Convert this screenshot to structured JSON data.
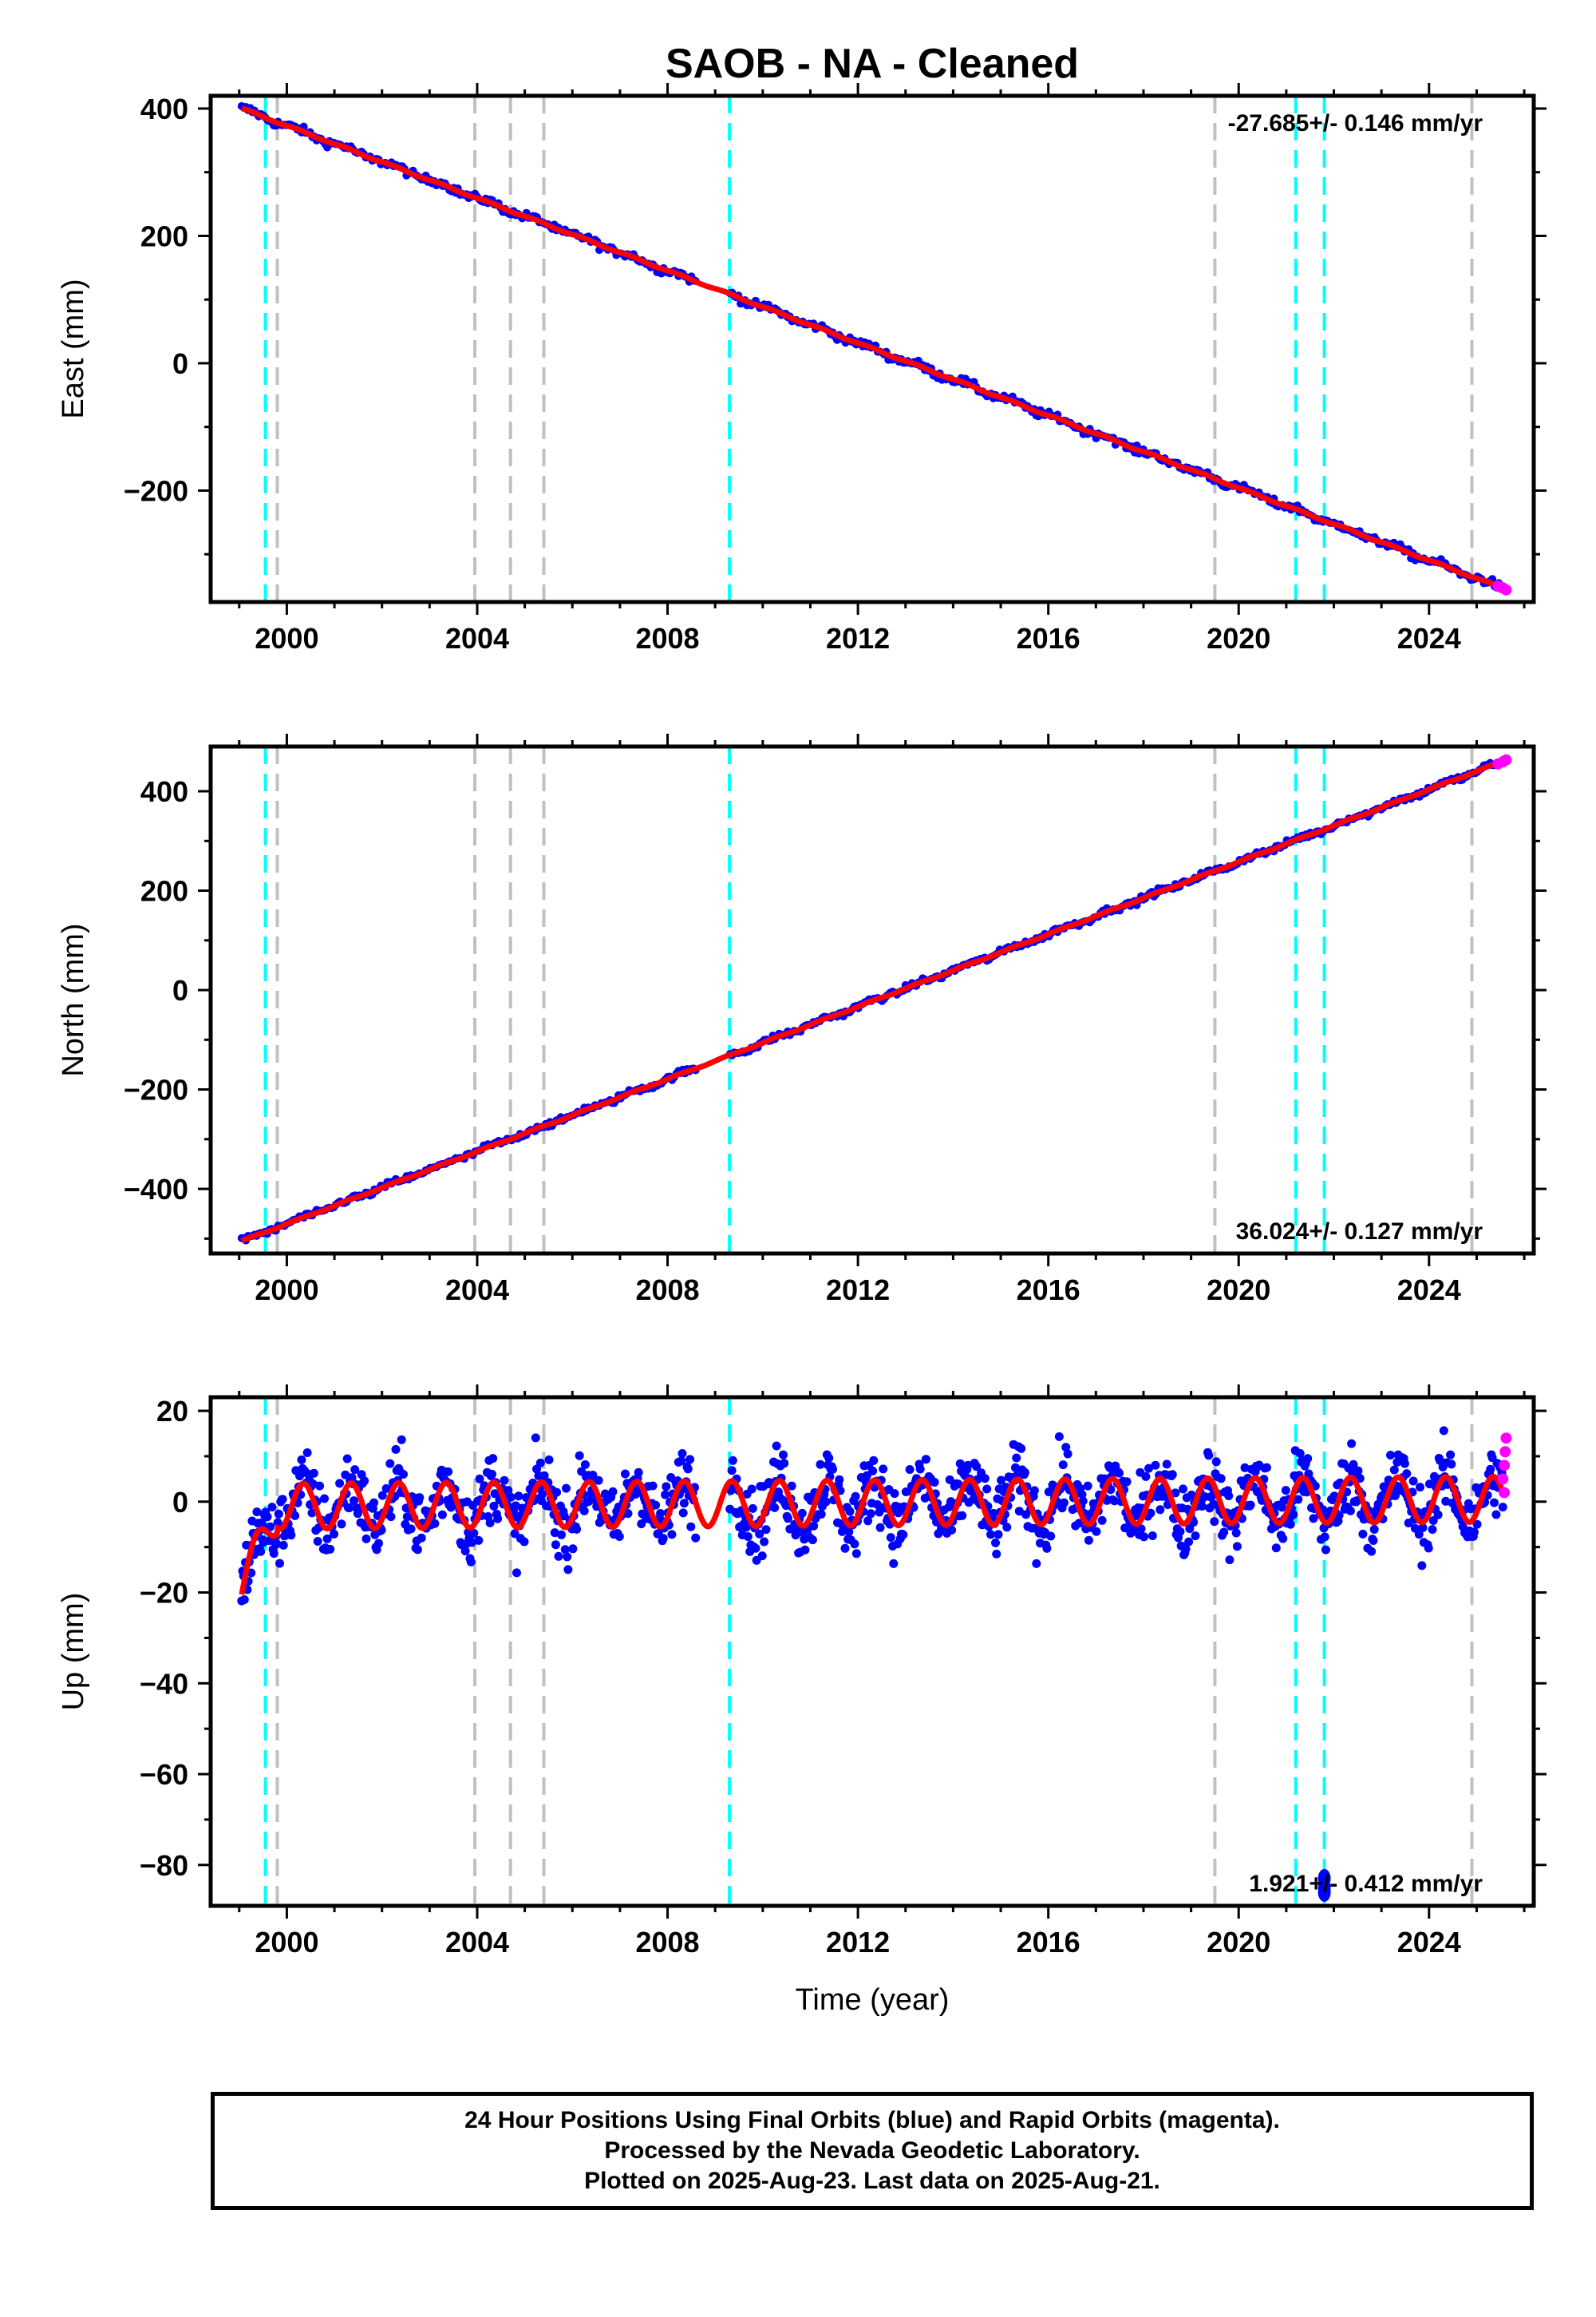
{
  "title": "SAOB  - NA - Cleaned",
  "x_axis_label": "Time (year)",
  "caption": [
    "24 Hour Positions Using Final Orbits (blue) and Rapid Orbits (magenta).",
    "Processed by the Nevada Geodetic Laboratory.",
    "Plotted on 2025-Aug-23. Last data on 2025-Aug-21."
  ],
  "colors": {
    "final_orbits": "#0000ff",
    "rapid_orbits": "#ff00ff",
    "model": "#ff0000",
    "equipment_change": "#00ffff",
    "other_event": "#c0c0c0"
  },
  "chart_data": [
    {
      "type": "scatter",
      "ylabel": "East (mm)",
      "xlim": [
        1998.4,
        2026.2
      ],
      "ylim": [
        -375,
        420
      ],
      "xticks": [
        2000,
        2004,
        2008,
        2012,
        2016,
        2020,
        2024
      ],
      "yticks": [
        -200,
        0,
        200,
        400
      ],
      "velocity_text": "-27.685+/- 0.146 mm/yr",
      "velocity_position": "top-right",
      "trend": {
        "start": [
          1999.05,
          400
        ],
        "end": [
          2025.6,
          -355
        ],
        "gap": [
          2008.6,
          2009.3
        ]
      },
      "rapid_points": [
        [
          2025.45,
          -350
        ],
        [
          2025.55,
          -353
        ],
        [
          2025.62,
          -356
        ]
      ],
      "event_lines": [
        {
          "x": 1999.55,
          "kind": "equipment_change"
        },
        {
          "x": 1999.8,
          "kind": "other_event"
        },
        {
          "x": 2003.95,
          "kind": "other_event"
        },
        {
          "x": 2004.7,
          "kind": "other_event"
        },
        {
          "x": 2005.4,
          "kind": "other_event"
        },
        {
          "x": 2009.3,
          "kind": "equipment_change"
        },
        {
          "x": 2019.5,
          "kind": "other_event"
        },
        {
          "x": 2021.2,
          "kind": "equipment_change"
        },
        {
          "x": 2021.8,
          "kind": "equipment_change"
        },
        {
          "x": 2024.9,
          "kind": "other_event"
        }
      ]
    },
    {
      "type": "scatter",
      "ylabel": "North (mm)",
      "xlim": [
        1998.4,
        2026.2
      ],
      "ylim": [
        -530,
        490
      ],
      "xticks": [
        2000,
        2004,
        2008,
        2012,
        2016,
        2020,
        2024
      ],
      "yticks": [
        -400,
        -200,
        0,
        200,
        400
      ],
      "velocity_text": "36.024+/- 0.127 mm/yr",
      "velocity_position": "bottom-right",
      "trend": {
        "start": [
          1999.05,
          -505
        ],
        "end": [
          2025.6,
          462
        ],
        "gap": [
          2008.6,
          2009.3
        ]
      },
      "rapid_points": [
        [
          2025.45,
          455
        ],
        [
          2025.55,
          459
        ],
        [
          2025.62,
          463
        ]
      ],
      "event_lines": [
        {
          "x": 1999.55,
          "kind": "equipment_change"
        },
        {
          "x": 1999.8,
          "kind": "other_event"
        },
        {
          "x": 2003.95,
          "kind": "other_event"
        },
        {
          "x": 2004.7,
          "kind": "other_event"
        },
        {
          "x": 2005.4,
          "kind": "other_event"
        },
        {
          "x": 2009.3,
          "kind": "equipment_change"
        },
        {
          "x": 2019.5,
          "kind": "other_event"
        },
        {
          "x": 2021.2,
          "kind": "equipment_change"
        },
        {
          "x": 2021.8,
          "kind": "equipment_change"
        },
        {
          "x": 2024.9,
          "kind": "other_event"
        }
      ]
    },
    {
      "type": "scatter",
      "ylabel": "Up (mm)",
      "xlim": [
        1998.4,
        2026.2
      ],
      "ylim": [
        -89,
        23
      ],
      "xticks": [
        2000,
        2004,
        2008,
        2012,
        2016,
        2020,
        2024
      ],
      "yticks": [
        -80,
        -60,
        -40,
        -20,
        0,
        20
      ],
      "velocity_text": "1.921+/- 0.412 mm/yr",
      "velocity_position": "bottom-right",
      "seasonal_amplitude": 5,
      "scatter_spread": 7,
      "rapid_points": [
        [
          2025.55,
          5
        ],
        [
          2025.58,
          8
        ],
        [
          2025.6,
          11
        ],
        [
          2025.62,
          14
        ],
        [
          2025.58,
          2
        ]
      ],
      "outliers": [
        [
          2021.8,
          -83
        ],
        [
          2021.8,
          -85
        ],
        [
          2021.8,
          -86
        ]
      ],
      "event_lines": [
        {
          "x": 1999.55,
          "kind": "equipment_change"
        },
        {
          "x": 1999.8,
          "kind": "other_event"
        },
        {
          "x": 2003.95,
          "kind": "other_event"
        },
        {
          "x": 2004.7,
          "kind": "other_event"
        },
        {
          "x": 2005.4,
          "kind": "other_event"
        },
        {
          "x": 2009.3,
          "kind": "equipment_change"
        },
        {
          "x": 2019.5,
          "kind": "other_event"
        },
        {
          "x": 2021.2,
          "kind": "equipment_change"
        },
        {
          "x": 2021.8,
          "kind": "equipment_change"
        },
        {
          "x": 2024.9,
          "kind": "other_event"
        }
      ]
    }
  ]
}
